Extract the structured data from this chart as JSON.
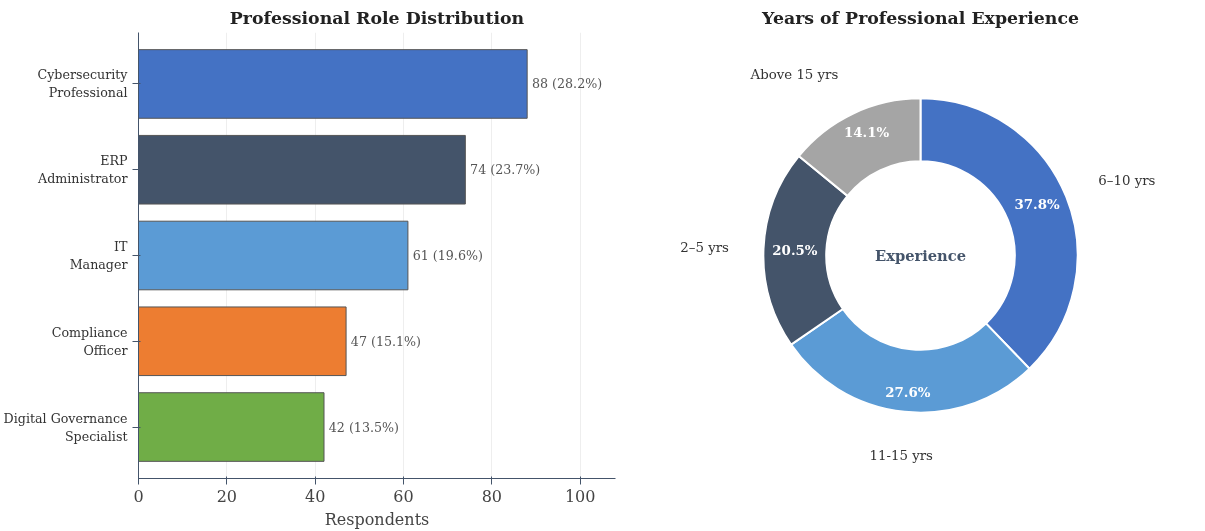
{
  "chart_data": [
    {
      "type": "bar",
      "title": "Professional Role Distribution",
      "xlabel": "Respondents",
      "orientation": "horizontal",
      "categories": [
        "Cybersecurity\nProfessional",
        "ERP\nAdministrator",
        "IT\nManager",
        "Compliance\nOfficer",
        "Digital Governance\nSpecialist"
      ],
      "values": [
        88,
        74,
        61,
        47,
        42
      ],
      "colors": [
        "#4472c4",
        "#44546a",
        "#5b9bd5",
        "#ed7d31",
        "#70ad47"
      ],
      "value_labels": [
        "88 (28.2%)",
        "74 (23.7%)",
        "61 (19.6%)",
        "47 (15.1%)",
        "42 (13.5%)"
      ],
      "xlim": [
        0,
        108
      ],
      "xticks": [
        0,
        20,
        40,
        60,
        80,
        100
      ],
      "grid": "x"
    },
    {
      "type": "donut",
      "title": "Years of Professional Experience",
      "categories": [
        "6–10 yrs",
        "11-15 yrs",
        "2–5 yrs",
        "Above 15 yrs"
      ],
      "values": [
        37.8,
        27.6,
        20.5,
        14.1
      ],
      "colors": [
        "#4472c4",
        "#5b9bd5",
        "#44546a",
        "#a5a5a5"
      ],
      "value_labels": [
        "37.8%",
        "27.6%",
        "20.5%",
        "14.1%"
      ],
      "annotations": [
        "Experience"
      ]
    }
  ]
}
